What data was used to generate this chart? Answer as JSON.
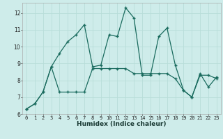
{
  "title": "",
  "xlabel": "Humidex (Indice chaleur)",
  "background_color": "#ceecea",
  "grid_color": "#b8ddd9",
  "line_color": "#1a6b5e",
  "xlim": [
    -0.5,
    23.5
  ],
  "ylim": [
    6,
    12.6
  ],
  "yticks": [
    6,
    7,
    8,
    9,
    10,
    11,
    12
  ],
  "xticks": [
    0,
    1,
    2,
    3,
    4,
    5,
    6,
    7,
    8,
    9,
    10,
    11,
    12,
    13,
    14,
    15,
    16,
    17,
    18,
    19,
    20,
    21,
    22,
    23
  ],
  "series1_x": [
    0,
    1,
    2,
    3,
    4,
    5,
    6,
    7,
    8,
    9,
    10,
    11,
    12,
    13,
    14,
    15,
    16,
    17,
    18,
    19,
    20,
    21,
    22,
    23
  ],
  "series1_y": [
    6.3,
    6.6,
    7.3,
    8.8,
    9.6,
    10.3,
    10.7,
    11.3,
    8.8,
    8.9,
    10.7,
    10.6,
    12.3,
    11.7,
    8.3,
    8.3,
    10.6,
    11.1,
    8.9,
    7.4,
    7.0,
    8.4,
    7.6,
    8.2
  ],
  "series2_x": [
    0,
    1,
    2,
    3,
    4,
    5,
    6,
    7,
    8,
    9,
    10,
    11,
    12,
    13,
    14,
    15,
    16,
    17,
    18,
    19,
    20,
    21,
    22,
    23
  ],
  "series2_y": [
    6.3,
    6.6,
    7.3,
    8.8,
    7.3,
    7.3,
    7.3,
    7.3,
    8.7,
    8.7,
    8.7,
    8.7,
    8.7,
    8.4,
    8.4,
    8.4,
    8.4,
    8.4,
    8.1,
    7.4,
    7.0,
    8.3,
    8.3,
    8.1
  ],
  "tick_fontsize": 5.0,
  "xlabel_fontsize": 6.5,
  "marker_size": 3.0,
  "linewidth": 0.9
}
